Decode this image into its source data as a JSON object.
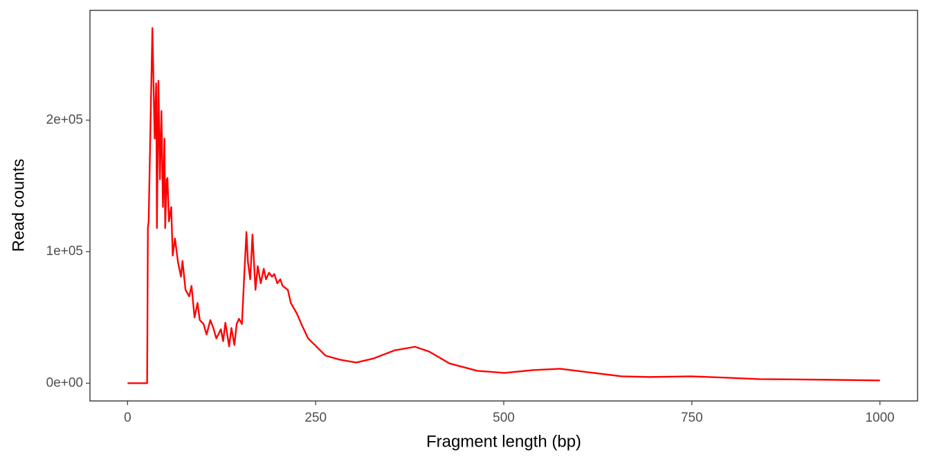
{
  "chart_data": {
    "type": "line",
    "xlabel": "Fragment length (bp)",
    "ylabel": "Read counts",
    "x": [
      0,
      26,
      27,
      28,
      31,
      33,
      36,
      38,
      39,
      41,
      43,
      45,
      47,
      49,
      50,
      52,
      53,
      55,
      58,
      60,
      63,
      67,
      71,
      73,
      77,
      82,
      85,
      89,
      93,
      96,
      101,
      105,
      110,
      114,
      118,
      124,
      127,
      130,
      135,
      138,
      142,
      145,
      148,
      152,
      155,
      158,
      160,
      163,
      166,
      170,
      173,
      177,
      181,
      184,
      188,
      192,
      195,
      199,
      203,
      206,
      213,
      217,
      225,
      231,
      240,
      249,
      263,
      281,
      304,
      327,
      355,
      382,
      401,
      428,
      465,
      501,
      538,
      575,
      611,
      657,
      694,
      749,
      795,
      840,
      932,
      1000
    ],
    "series": [
      {
        "name": "Read counts",
        "color": "#ff0000",
        "values": [
          0,
          0,
          118000,
          123000,
          212000,
          270000,
          186000,
          228000,
          118000,
          230000,
          155000,
          207000,
          134000,
          186000,
          118000,
          155000,
          156000,
          123000,
          134000,
          97000,
          110000,
          92000,
          81000,
          93000,
          71000,
          66000,
          74000,
          50000,
          61000,
          48000,
          45000,
          37000,
          48000,
          42000,
          34000,
          41000,
          32000,
          46000,
          28000,
          42000,
          29000,
          45000,
          49000,
          45000,
          81000,
          115000,
          92000,
          79000,
          113000,
          71000,
          89000,
          76000,
          87000,
          79000,
          84000,
          81000,
          83000,
          76000,
          79000,
          74000,
          71000,
          61000,
          53000,
          45000,
          34000,
          29000,
          21000,
          18000,
          15700,
          18800,
          25000,
          27700,
          24000,
          15000,
          9400,
          7800,
          9900,
          11000,
          8400,
          5200,
          4700,
          5200,
          4200,
          3100,
          2600,
          2100
        ]
      }
    ],
    "xlim": [
      -50,
      1050
    ],
    "xticks": [
      0,
      250,
      500,
      750,
      1000
    ],
    "ylim": [
      -13500,
      283500
    ],
    "yticks": [
      {
        "value": 0,
        "label": "0e+00"
      },
      {
        "value": 100000,
        "label": "1e+05"
      },
      {
        "value": 200000,
        "label": "2e+05"
      }
    ]
  }
}
